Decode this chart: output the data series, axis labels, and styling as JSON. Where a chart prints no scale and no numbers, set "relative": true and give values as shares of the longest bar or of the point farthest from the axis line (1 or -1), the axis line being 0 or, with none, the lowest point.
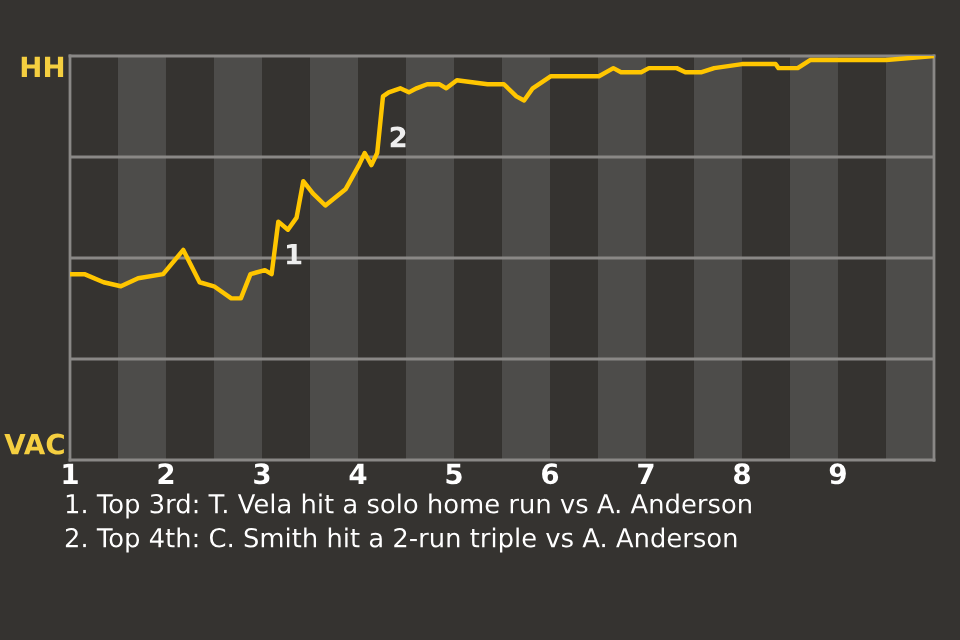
{
  "chart_data": {
    "type": "line",
    "relative": true,
    "x": [
      1.0,
      1.15,
      1.35,
      1.53,
      1.71,
      1.97,
      2.18,
      2.35,
      2.5,
      2.68,
      2.78,
      2.88,
      3.03,
      3.1,
      3.17,
      3.27,
      3.36,
      3.43,
      3.53,
      3.66,
      3.87,
      4.01,
      4.07,
      4.14,
      4.2,
      4.26,
      4.32,
      4.44,
      4.53,
      4.61,
      4.72,
      4.85,
      4.92,
      5.03,
      5.35,
      5.52,
      5.65,
      5.73,
      5.82,
      6.01,
      6.32,
      6.51,
      6.66,
      6.74,
      6.95,
      7.03,
      7.32,
      7.41,
      7.58,
      7.71,
      8.0,
      8.35,
      8.38,
      8.58,
      8.71,
      8.89,
      9.5,
      10.0
    ],
    "series": [
      {
        "color": "#ffc600",
        "values": [
          0.46,
          0.46,
          0.44,
          0.43,
          0.45,
          0.46,
          0.52,
          0.44,
          0.43,
          0.4,
          0.4,
          0.46,
          0.47,
          0.46,
          0.59,
          0.57,
          0.6,
          0.69,
          0.66,
          0.63,
          0.67,
          0.73,
          0.76,
          0.73,
          0.76,
          0.9,
          0.91,
          0.92,
          0.91,
          0.92,
          0.93,
          0.93,
          0.92,
          0.94,
          0.93,
          0.93,
          0.9,
          0.89,
          0.92,
          0.95,
          0.95,
          0.95,
          0.97,
          0.96,
          0.96,
          0.97,
          0.97,
          0.96,
          0.96,
          0.97,
          0.98,
          0.98,
          0.97,
          0.97,
          0.99,
          0.99,
          0.99,
          1.0
        ]
      }
    ],
    "xlim": [
      1,
      10
    ],
    "xticks": [
      1,
      2,
      3,
      4,
      5,
      6,
      7,
      8,
      9
    ],
    "grid": "y",
    "bands": [
      {
        "axis": "x",
        "from": 1.5,
        "to": 2,
        "color": "#4d4c4a"
      },
      {
        "axis": "x",
        "from": 2.5,
        "to": 3,
        "color": "#4d4c4a"
      },
      {
        "axis": "x",
        "from": 3.5,
        "to": 4,
        "color": "#4d4c4a"
      },
      {
        "axis": "x",
        "from": 4.5,
        "to": 5,
        "color": "#4d4c4a"
      },
      {
        "axis": "x",
        "from": 5.5,
        "to": 6,
        "color": "#4d4c4a"
      },
      {
        "axis": "x",
        "from": 6.5,
        "to": 7,
        "color": "#4d4c4a"
      },
      {
        "axis": "x",
        "from": 7.5,
        "to": 8,
        "color": "#4d4c4a"
      },
      {
        "axis": "x",
        "from": 8.5,
        "to": 9,
        "color": "#4d4c4a"
      },
      {
        "axis": "x",
        "from": 9.5,
        "to": 10,
        "color": "#4d4c4a"
      }
    ],
    "annotations": [
      "HH",
      "VAC",
      {
        "text": "1",
        "x": 3.17,
        "y": 0.47
      },
      {
        "text": "2",
        "x": 4.26,
        "y": 0.76
      },
      "1. Top 3rd: T. Vela hit a solo home run vs A. Anderson",
      "2. Top 4th: C. Smith hit a 2-run triple vs A. Anderson"
    ]
  }
}
